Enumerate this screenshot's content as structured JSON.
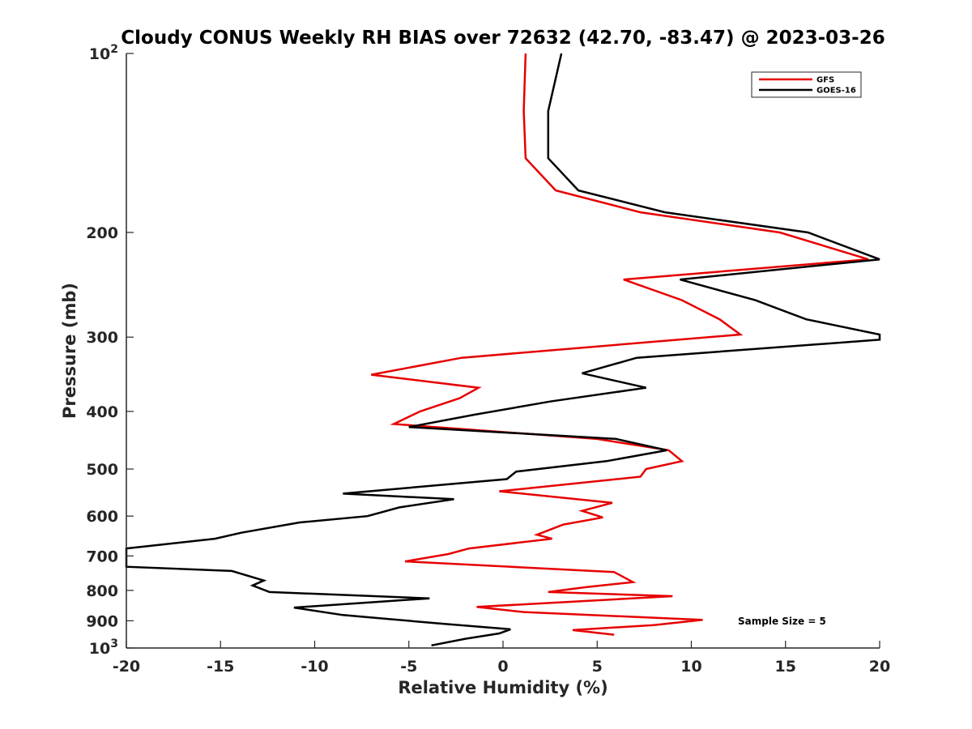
{
  "chart_data": {
    "type": "line",
    "title": "Cloudy CONUS Weekly RH BIAS over 72632 (42.70, -83.47) @ 2023-03-26",
    "xlabel": "Relative Humidity (%)",
    "ylabel": "Pressure (mb)",
    "xlim": [
      -20,
      20
    ],
    "ylim": [
      100,
      1000
    ],
    "y_scale": "log",
    "y_reversed": true,
    "x_ticks": [
      -20,
      -15,
      -10,
      -5,
      0,
      5,
      10,
      15,
      20
    ],
    "x_tick_labels": [
      "-20",
      "-15",
      "-10",
      "-5",
      "0",
      "5",
      "10",
      "15",
      "20"
    ],
    "y_ticks": [
      100,
      200,
      300,
      400,
      500,
      600,
      700,
      800,
      900,
      1000
    ],
    "y_tick_labels": [
      {
        "base": "10",
        "exp": "2"
      },
      {
        "base": "200",
        "exp": ""
      },
      {
        "base": "300",
        "exp": ""
      },
      {
        "base": "400",
        "exp": ""
      },
      {
        "base": "500",
        "exp": ""
      },
      {
        "base": "600",
        "exp": ""
      },
      {
        "base": "700",
        "exp": ""
      },
      {
        "base": "800",
        "exp": ""
      },
      {
        "base": "900",
        "exp": ""
      },
      {
        "base": "10",
        "exp": "3"
      }
    ],
    "grid": false,
    "legend_position": "top-right",
    "annotation": "Sample Size = 5",
    "series": [
      {
        "name": "GFS",
        "color": "#e60000",
        "points": [
          [
            1.2,
            100
          ],
          [
            1.1,
            125
          ],
          [
            1.2,
            150
          ],
          [
            2.8,
            170
          ],
          [
            7.3,
            185
          ],
          [
            14.7,
            200
          ],
          [
            19.4,
            222
          ],
          [
            6.4,
            240
          ],
          [
            9.5,
            260
          ],
          [
            11.5,
            280
          ],
          [
            12.6,
            297
          ],
          [
            -2.2,
            325
          ],
          [
            -7.0,
            347
          ],
          [
            -1.3,
            365
          ],
          [
            -2.3,
            380
          ],
          [
            -4.4,
            400
          ],
          [
            -5.8,
            420
          ],
          [
            5.0,
            445
          ],
          [
            8.8,
            465
          ],
          [
            9.5,
            485
          ],
          [
            7.6,
            500
          ],
          [
            7.3,
            515
          ],
          [
            -0.2,
            545
          ],
          [
            5.8,
            570
          ],
          [
            4.2,
            588
          ],
          [
            5.3,
            603
          ],
          [
            3.2,
            620
          ],
          [
            1.8,
            645
          ],
          [
            2.6,
            655
          ],
          [
            -1.8,
            680
          ],
          [
            -2.9,
            695
          ],
          [
            -5.2,
            715
          ],
          [
            5.9,
            745
          ],
          [
            6.9,
            775
          ],
          [
            4.4,
            790
          ],
          [
            2.4,
            805
          ],
          [
            9.0,
            818
          ],
          [
            -1.4,
            853
          ],
          [
            1.1,
            870
          ],
          [
            10.6,
            897
          ],
          [
            8.0,
            915
          ],
          [
            3.7,
            933
          ],
          [
            5.9,
            950
          ]
        ]
      },
      {
        "name": "GOES-16",
        "color": "#000000",
        "points": [
          [
            3.1,
            100
          ],
          [
            2.4,
            125
          ],
          [
            2.4,
            150
          ],
          [
            4.0,
            170
          ],
          [
            8.6,
            185
          ],
          [
            16.2,
            200
          ],
          [
            20.0,
            222
          ],
          [
            9.4,
            240
          ],
          [
            13.4,
            260
          ],
          [
            16.1,
            280
          ],
          [
            20.0,
            297
          ],
          [
            20.0,
            303
          ],
          [
            7.1,
            325
          ],
          [
            4.2,
            345
          ],
          [
            7.6,
            365
          ],
          [
            2.5,
            385
          ],
          [
            -1.5,
            405
          ],
          [
            -5.0,
            425
          ],
          [
            6.0,
            445
          ],
          [
            8.7,
            465
          ],
          [
            5.5,
            485
          ],
          [
            0.7,
            505
          ],
          [
            0.2,
            520
          ],
          [
            -8.5,
            550
          ],
          [
            -2.6,
            562
          ],
          [
            -5.5,
            580
          ],
          [
            -7.2,
            600
          ],
          [
            -10.8,
            615
          ],
          [
            -13.9,
            640
          ],
          [
            -15.3,
            655
          ],
          [
            -20.0,
            680
          ],
          [
            -20.0,
            730
          ],
          [
            -14.4,
            742
          ],
          [
            -12.7,
            770
          ],
          [
            -13.3,
            785
          ],
          [
            -12.4,
            805
          ],
          [
            -3.9,
            825
          ],
          [
            -11.1,
            855
          ],
          [
            -8.5,
            880
          ],
          [
            -3.3,
            910
          ],
          [
            0.4,
            930
          ],
          [
            -0.2,
            945
          ],
          [
            -2.0,
            965
          ],
          [
            -3.8,
            990
          ]
        ]
      }
    ]
  }
}
